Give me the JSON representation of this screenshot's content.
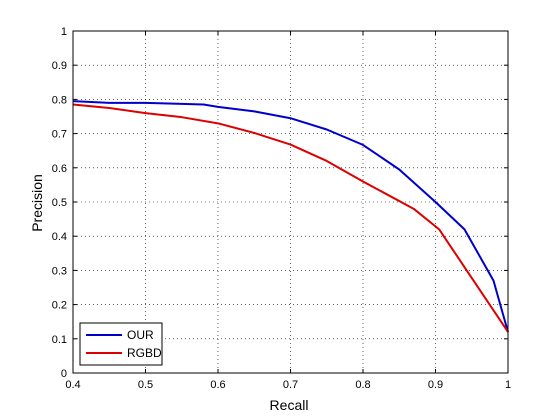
{
  "chart_data": {
    "type": "line",
    "title": "",
    "xlabel": "Recall",
    "ylabel": "Precision",
    "xlim": [
      0.4,
      1.0
    ],
    "ylim": [
      0,
      1.0
    ],
    "xticks": [
      "0.4",
      "0.5",
      "0.6",
      "0.7",
      "0.8",
      "0.9",
      "1"
    ],
    "yticks": [
      "0",
      "0.1",
      "0.2",
      "0.3",
      "0.4",
      "0.5",
      "0.6",
      "0.7",
      "0.8",
      "0.9",
      "1"
    ],
    "grid": true,
    "legend_position": "bottom-left",
    "series": [
      {
        "name": "OUR",
        "color": "#0000cc",
        "points": [
          [
            0.4,
            0.795
          ],
          [
            0.45,
            0.79
          ],
          [
            0.5,
            0.79
          ],
          [
            0.55,
            0.787
          ],
          [
            0.58,
            0.785
          ],
          [
            0.6,
            0.778
          ],
          [
            0.65,
            0.765
          ],
          [
            0.7,
            0.745
          ],
          [
            0.75,
            0.712
          ],
          [
            0.8,
            0.667
          ],
          [
            0.85,
            0.595
          ],
          [
            0.9,
            0.5
          ],
          [
            0.94,
            0.42
          ],
          [
            0.98,
            0.27
          ],
          [
            1.0,
            0.12
          ]
        ]
      },
      {
        "name": "RGBD",
        "color": "#dd0000",
        "points": [
          [
            0.4,
            0.785
          ],
          [
            0.45,
            0.775
          ],
          [
            0.5,
            0.76
          ],
          [
            0.55,
            0.748
          ],
          [
            0.6,
            0.73
          ],
          [
            0.65,
            0.702
          ],
          [
            0.7,
            0.668
          ],
          [
            0.75,
            0.62
          ],
          [
            0.8,
            0.56
          ],
          [
            0.87,
            0.48
          ],
          [
            0.905,
            0.42
          ],
          [
            1.0,
            0.12
          ]
        ]
      }
    ]
  }
}
